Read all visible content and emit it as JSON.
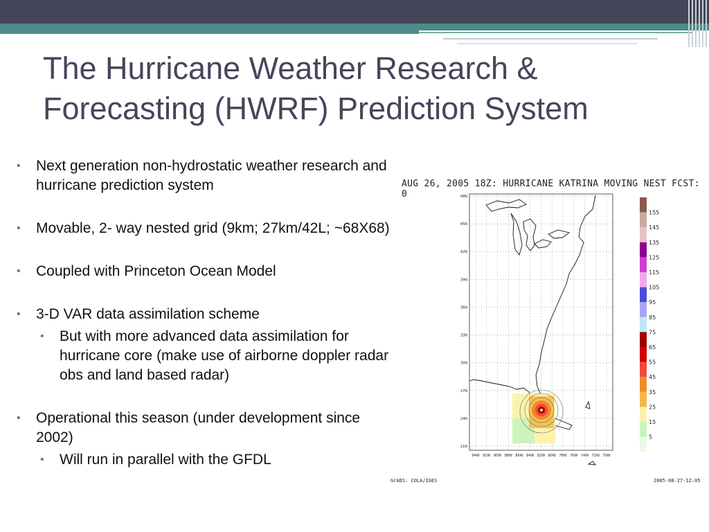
{
  "slide": {
    "title_line1": "The Hurricane Weather Research &",
    "title_line2": "Forecasting (HWRF) Prediction System"
  },
  "bullets": [
    {
      "text": "Next generation non-hydrostatic weather research and hurricane prediction system"
    },
    {
      "text": "Movable, 2- way nested grid   (9km; 27km/42L;  ~68X68)"
    },
    {
      "text": "Coupled with Princeton Ocean Model"
    },
    {
      "text": "3-D VAR data assimilation scheme",
      "sub": "But with more advanced data assimilation for hurricane core (make use of airborne doppler radar obs and land based radar)"
    },
    {
      "text": "Operational this season (under development since 2002)",
      "sub": "Will run in parallel with the GFDL"
    }
  ],
  "figure": {
    "title": "AUG 26, 2005 18Z: HURRICANE KATRINA MOVING NEST FCST: 0",
    "footer_left": "GrADS: COLA/IGES",
    "footer_right": "2005-08-27-12:05",
    "lat_labels": [
      "48N",
      "45N",
      "42N",
      "39N",
      "36N",
      "33N",
      "30N",
      "27N",
      "24N",
      "21N"
    ],
    "lon_labels": [
      "94W",
      "92W",
      "90W",
      "88W",
      "86W",
      "84W",
      "82W",
      "80W",
      "78W",
      "76W",
      "74W",
      "72W",
      "70W"
    ],
    "colorbar": [
      {
        "label": "155",
        "color": "#8a5a4e"
      },
      {
        "label": "145",
        "color": "#c9a9a0"
      },
      {
        "label": "135",
        "color": "#e8c3c0"
      },
      {
        "label": "125",
        "color": "#8e008e"
      },
      {
        "label": "115",
        "color": "#d23dd2"
      },
      {
        "label": "105",
        "color": "#f0a8f0"
      },
      {
        "label": "95",
        "color": "#4b4bd6"
      },
      {
        "label": "85",
        "color": "#a7a4f4"
      },
      {
        "label": "75",
        "color": "#bfe8f6"
      },
      {
        "label": "65",
        "color": "#9e0000"
      },
      {
        "label": "55",
        "color": "#d40000"
      },
      {
        "label": "45",
        "color": "#ef4a3c"
      },
      {
        "label": "35",
        "color": "#f08a2a"
      },
      {
        "label": "25",
        "color": "#f6b74a"
      },
      {
        "label": "15",
        "color": "#fbf2a8"
      },
      {
        "label": "5",
        "color": "#c7f4bd"
      },
      {
        "label": "",
        "color": "#eafbe4"
      }
    ]
  }
}
